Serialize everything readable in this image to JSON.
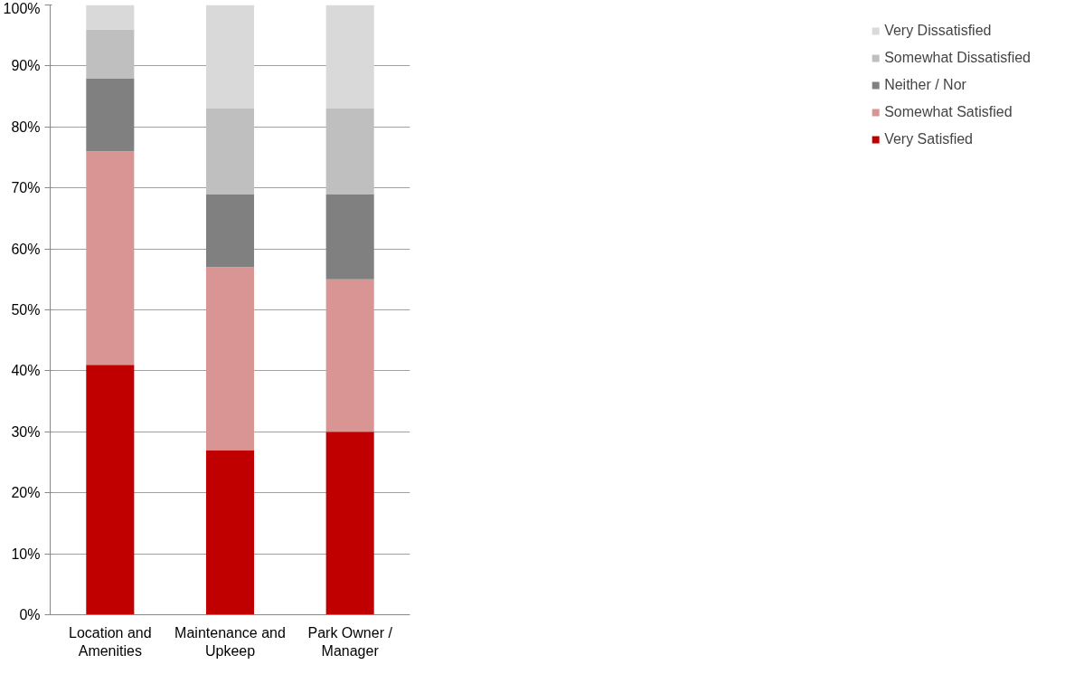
{
  "chart_data": {
    "type": "bar",
    "stacked": true,
    "categories": [
      "Location and Amenities",
      "Maintenance and Upkeep",
      "Park Owner / Manager"
    ],
    "series": [
      {
        "name": "Very Satisfied",
        "color": "#c00000",
        "values": [
          41,
          27,
          30
        ]
      },
      {
        "name": "Somewhat Satisfied",
        "color": "#d99594",
        "values": [
          35,
          30,
          25
        ]
      },
      {
        "name": "Neither / Nor",
        "color": "#808080",
        "values": [
          12,
          12,
          14
        ]
      },
      {
        "name": "Somewhat Dissatisfied",
        "color": "#bfbfbf",
        "values": [
          8,
          14,
          14
        ]
      },
      {
        "name": "Very Dissatisfied",
        "color": "#d9d9d9",
        "values": [
          4,
          17,
          17
        ]
      }
    ],
    "ylim": [
      0,
      100
    ],
    "yticks": [
      {
        "value": 0,
        "label": "0%"
      },
      {
        "value": 10,
        "label": "10%"
      },
      {
        "value": 20,
        "label": "20%"
      },
      {
        "value": 30,
        "label": "30%"
      },
      {
        "value": 40,
        "label": "40%"
      },
      {
        "value": 50,
        "label": "50%"
      },
      {
        "value": 60,
        "label": "60%"
      },
      {
        "value": 70,
        "label": "70%"
      },
      {
        "value": 80,
        "label": "80%"
      },
      {
        "value": 90,
        "label": "90%"
      },
      {
        "value": 100,
        "label": "100%"
      }
    ],
    "grid": "y",
    "legend": "right"
  }
}
